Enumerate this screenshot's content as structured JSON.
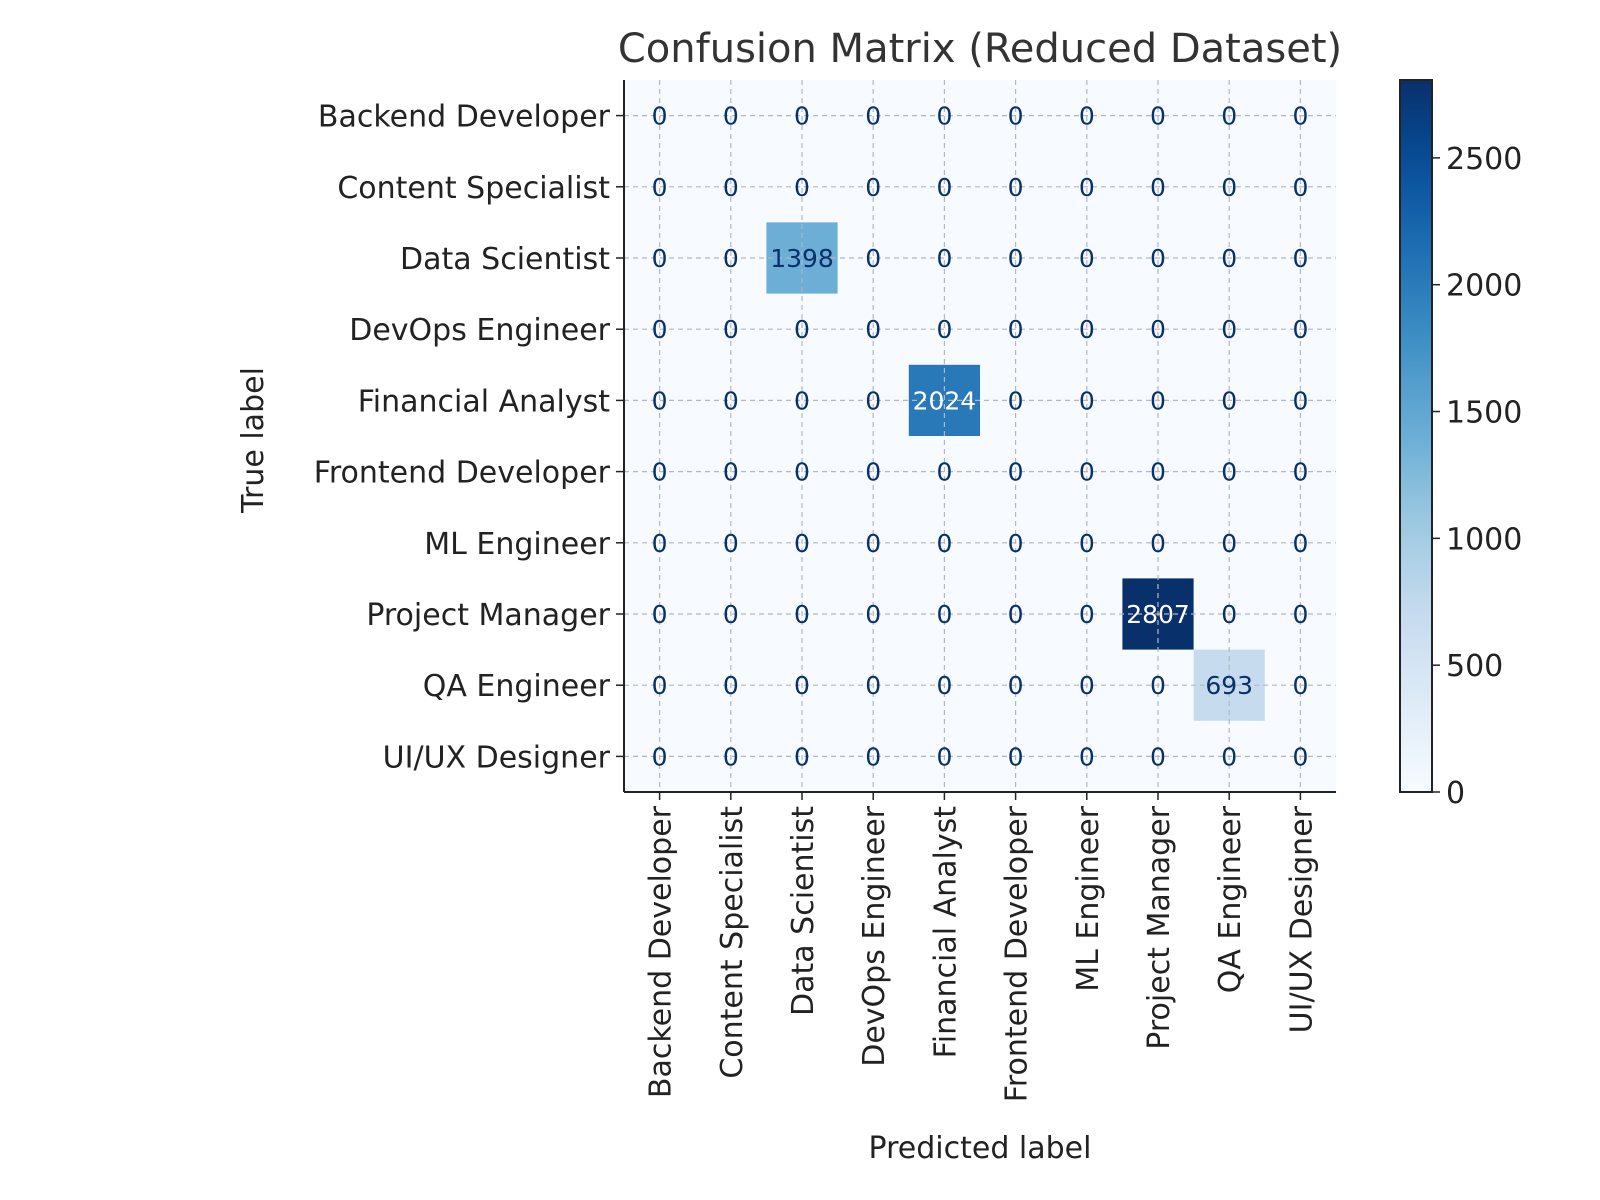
{
  "chart_data": {
    "type": "heatmap",
    "title": "Confusion Matrix (Reduced Dataset)",
    "xlabel": "Predicted label",
    "ylabel": "True label",
    "row_labels": [
      "Backend Developer",
      "Content Specialist",
      "Data Scientist",
      "DevOps Engineer",
      "Financial Analyst",
      "Frontend Developer",
      "ML Engineer",
      "Project Manager",
      "QA Engineer",
      "UI/UX Designer"
    ],
    "col_labels": [
      "Backend Developer",
      "Content Specialist",
      "Data Scientist",
      "DevOps Engineer",
      "Financial Analyst",
      "Frontend Developer",
      "ML Engineer",
      "Project Manager",
      "QA Engineer",
      "UI/UX Designer"
    ],
    "values": [
      [
        0,
        0,
        0,
        0,
        0,
        0,
        0,
        0,
        0,
        0
      ],
      [
        0,
        0,
        0,
        0,
        0,
        0,
        0,
        0,
        0,
        0
      ],
      [
        0,
        0,
        1398,
        0,
        0,
        0,
        0,
        0,
        0,
        0
      ],
      [
        0,
        0,
        0,
        0,
        0,
        0,
        0,
        0,
        0,
        0
      ],
      [
        0,
        0,
        0,
        0,
        2024,
        0,
        0,
        0,
        0,
        0
      ],
      [
        0,
        0,
        0,
        0,
        0,
        0,
        0,
        0,
        0,
        0
      ],
      [
        0,
        0,
        0,
        0,
        0,
        0,
        0,
        0,
        0,
        0
      ],
      [
        0,
        0,
        0,
        0,
        0,
        0,
        0,
        2807,
        0,
        0
      ],
      [
        0,
        0,
        0,
        0,
        0,
        0,
        0,
        0,
        693,
        0
      ],
      [
        0,
        0,
        0,
        0,
        0,
        0,
        0,
        0,
        0,
        0
      ]
    ],
    "colormap": "Blues",
    "vmin": 0,
    "vmax": 2807,
    "colorbar_ticks": [
      0,
      500,
      1000,
      1500,
      2000,
      2500
    ],
    "grid": true,
    "grid_style": "dashed"
  }
}
